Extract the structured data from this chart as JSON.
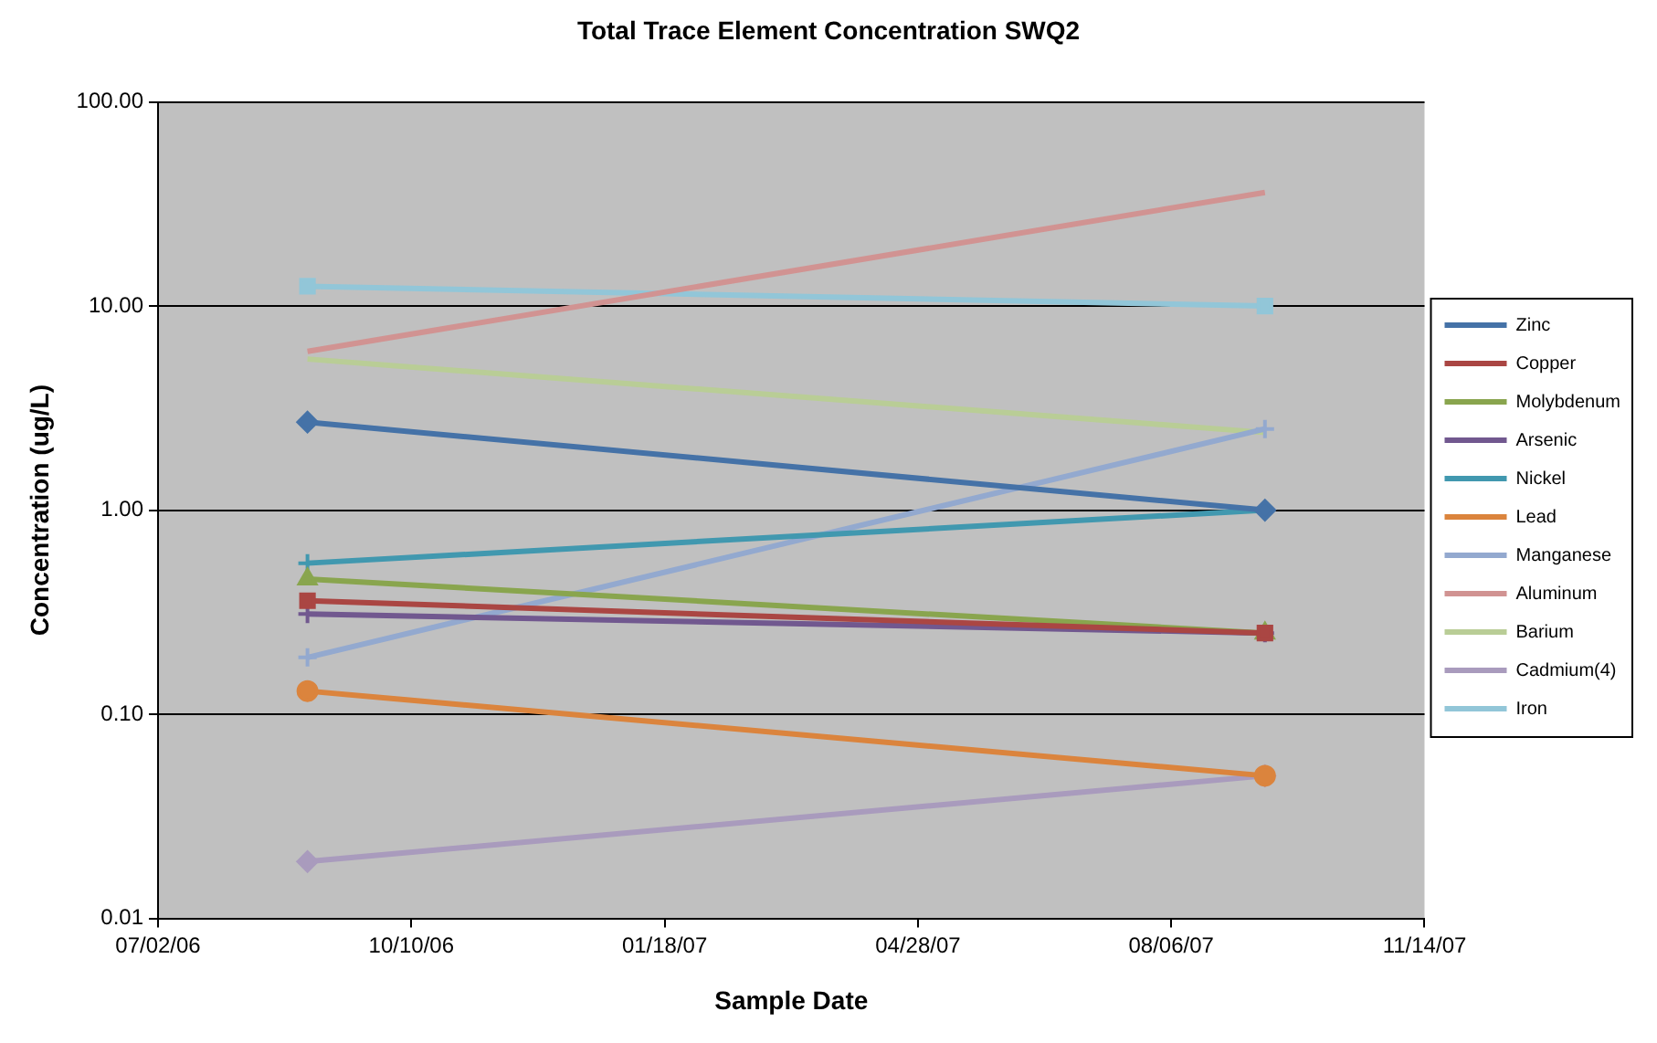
{
  "chart_data": {
    "type": "line",
    "title": "Total Trace Element Concentration SWQ2",
    "xlabel": "Sample Date",
    "ylabel": "Concentration (ug/L)",
    "x": [
      "2006-08-30",
      "2007-09-12"
    ],
    "xlim": [
      "2006-07-02",
      "2007-11-14"
    ],
    "xticks": [
      {
        "value": "2006-07-02",
        "label": "07/02/06"
      },
      {
        "value": "2006-10-10",
        "label": "10/10/06"
      },
      {
        "value": "2007-01-18",
        "label": "01/18/07"
      },
      {
        "value": "2007-04-28",
        "label": "04/28/07"
      },
      {
        "value": "2007-08-06",
        "label": "08/06/07"
      },
      {
        "value": "2007-11-14",
        "label": "11/14/07"
      }
    ],
    "log": "y",
    "ylim": [
      0.01,
      100
    ],
    "yticks": [
      {
        "value": 0.01,
        "label": "0.01"
      },
      {
        "value": 0.1,
        "label": "0.10"
      },
      {
        "value": 1,
        "label": "1.00"
      },
      {
        "value": 10,
        "label": "10.00"
      },
      {
        "value": 100,
        "label": "100.00"
      }
    ],
    "grid": "y",
    "legend": "right",
    "series": [
      {
        "name": "Zinc",
        "color": "#4572a7",
        "marker": "diamond",
        "values": [
          2.7,
          1.0
        ]
      },
      {
        "name": "Copper",
        "color": "#aa4643",
        "marker": "square",
        "values": [
          0.36,
          0.25
        ]
      },
      {
        "name": "Molybdenum",
        "color": "#89a54e",
        "marker": "triangle",
        "values": [
          0.46,
          0.25
        ]
      },
      {
        "name": "Arsenic",
        "color": "#71588f",
        "marker": "cross",
        "values": [
          0.31,
          0.25
        ]
      },
      {
        "name": "Nickel",
        "color": "#4198af",
        "marker": "cross",
        "values": [
          0.55,
          1.0
        ]
      },
      {
        "name": "Lead",
        "color": "#db843d",
        "marker": "circle",
        "values": [
          0.13,
          0.05
        ]
      },
      {
        "name": "Manganese",
        "color": "#93a9cf",
        "marker": "cross",
        "values": [
          0.19,
          2.5
        ]
      },
      {
        "name": "Aluminum",
        "color": "#d19392",
        "marker": "none",
        "values": [
          6.0,
          36
        ]
      },
      {
        "name": "Barium",
        "color": "#b9cd96",
        "marker": "none",
        "values": [
          5.5,
          2.4
        ]
      },
      {
        "name": "Cadmium(4)",
        "color": "#a99bbd",
        "marker": "diamond",
        "values": [
          0.019,
          0.05
        ]
      },
      {
        "name": "Iron",
        "color": "#92c6d8",
        "marker": "square",
        "values": [
          12.5,
          10
        ]
      }
    ]
  }
}
